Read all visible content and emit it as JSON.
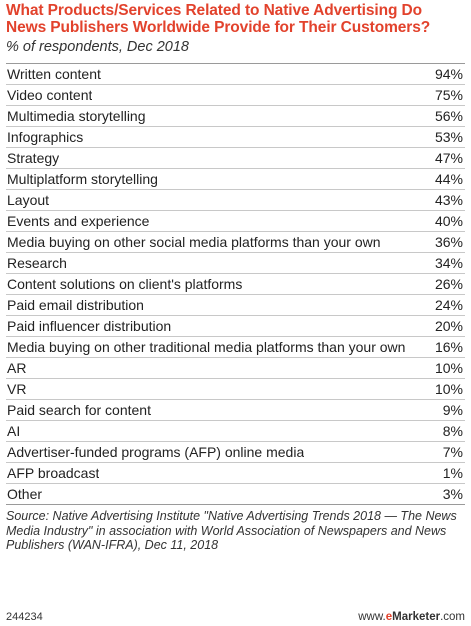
{
  "chart_data": {
    "type": "table",
    "title": "What Products/Services Related to Native Advertising Do News Publishers Worldwide Provide for Their Customers?",
    "subtitle": "% of respondents, Dec 2018",
    "categories": [
      "Written content",
      "Video content",
      "Multimedia storytelling",
      "Infographics",
      "Strategy",
      "Multiplatform storytelling",
      "Layout",
      "Events and experience",
      "Media buying on other social media platforms than your own",
      "Research",
      "Content solutions on client's platforms",
      "Paid email distribution",
      "Paid influencer distribution",
      "Media buying on other traditional media platforms than your own",
      "AR",
      "VR",
      "Paid search for content",
      "AI",
      "Advertiser-funded programs (AFP) online media",
      "AFP broadcast",
      "Other"
    ],
    "values": [
      94,
      75,
      56,
      53,
      47,
      44,
      43,
      40,
      36,
      34,
      26,
      24,
      20,
      16,
      10,
      10,
      9,
      8,
      7,
      1,
      3
    ],
    "value_labels": [
      "94%",
      "75%",
      "56%",
      "53%",
      "47%",
      "44%",
      "43%",
      "40%",
      "36%",
      "34%",
      "26%",
      "24%",
      "20%",
      "16%",
      "10%",
      "10%",
      "9%",
      "8%",
      "7%",
      "1%",
      "3%"
    ],
    "unit": "%"
  },
  "source": "Source: Native Advertising Institute \"Native Advertising Trends 2018 — The News Media Industry\" in association with World Association of Newspapers and News Publishers (WAN-IFRA), Dec 11, 2018",
  "footer": {
    "chart_id": "244234",
    "brand_prefix": "www.",
    "brand_e": "e",
    "brand_name": "Marketer",
    "brand_suffix": ".com"
  },
  "colors": {
    "title": "#e2422c",
    "brand_accent": "#e2422c"
  }
}
